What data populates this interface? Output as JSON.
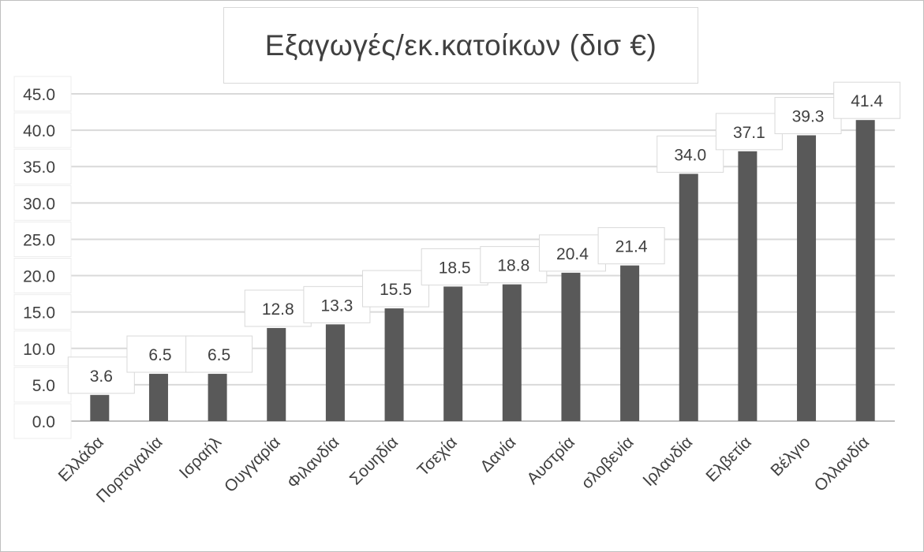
{
  "chart_data": {
    "type": "bar",
    "title": "Εξαγωγές/εκ.κατοίκων (δισ €)",
    "xlabel": "",
    "ylabel": "",
    "categories": [
      "Ελλάδα",
      "Πορτογαλία",
      "Ισραήλ",
      "Ουγγαρία",
      "Φιλανδία",
      "Σουηδία",
      "Τσεχία",
      "Δανία",
      "Αυστρία",
      "σλοβενία",
      "Ιρλανδία",
      "Ελβετία",
      "Βέλγιο",
      "Ολλανδία"
    ],
    "values": [
      3.6,
      6.5,
      6.5,
      12.8,
      13.3,
      15.5,
      18.5,
      18.8,
      20.4,
      21.4,
      34.0,
      37.1,
      39.3,
      41.4
    ],
    "data_labels": [
      "3.6",
      "6.5",
      "6.5",
      "12.8",
      "13.3",
      "15.5",
      "18.5",
      "18.8",
      "20.4",
      "21.4",
      "34.0",
      "37.1",
      "39.3",
      "41.4"
    ],
    "ylim": [
      0,
      45
    ],
    "yticks": [
      "0.0",
      "5.0",
      "10.0",
      "15.0",
      "20.0",
      "25.0",
      "30.0",
      "35.0",
      "40.0",
      "45.0"
    ],
    "grid": true,
    "legend": "none",
    "bar_color": "#595959",
    "grid_color": "#d9d9d9",
    "text_color": "#404040"
  }
}
